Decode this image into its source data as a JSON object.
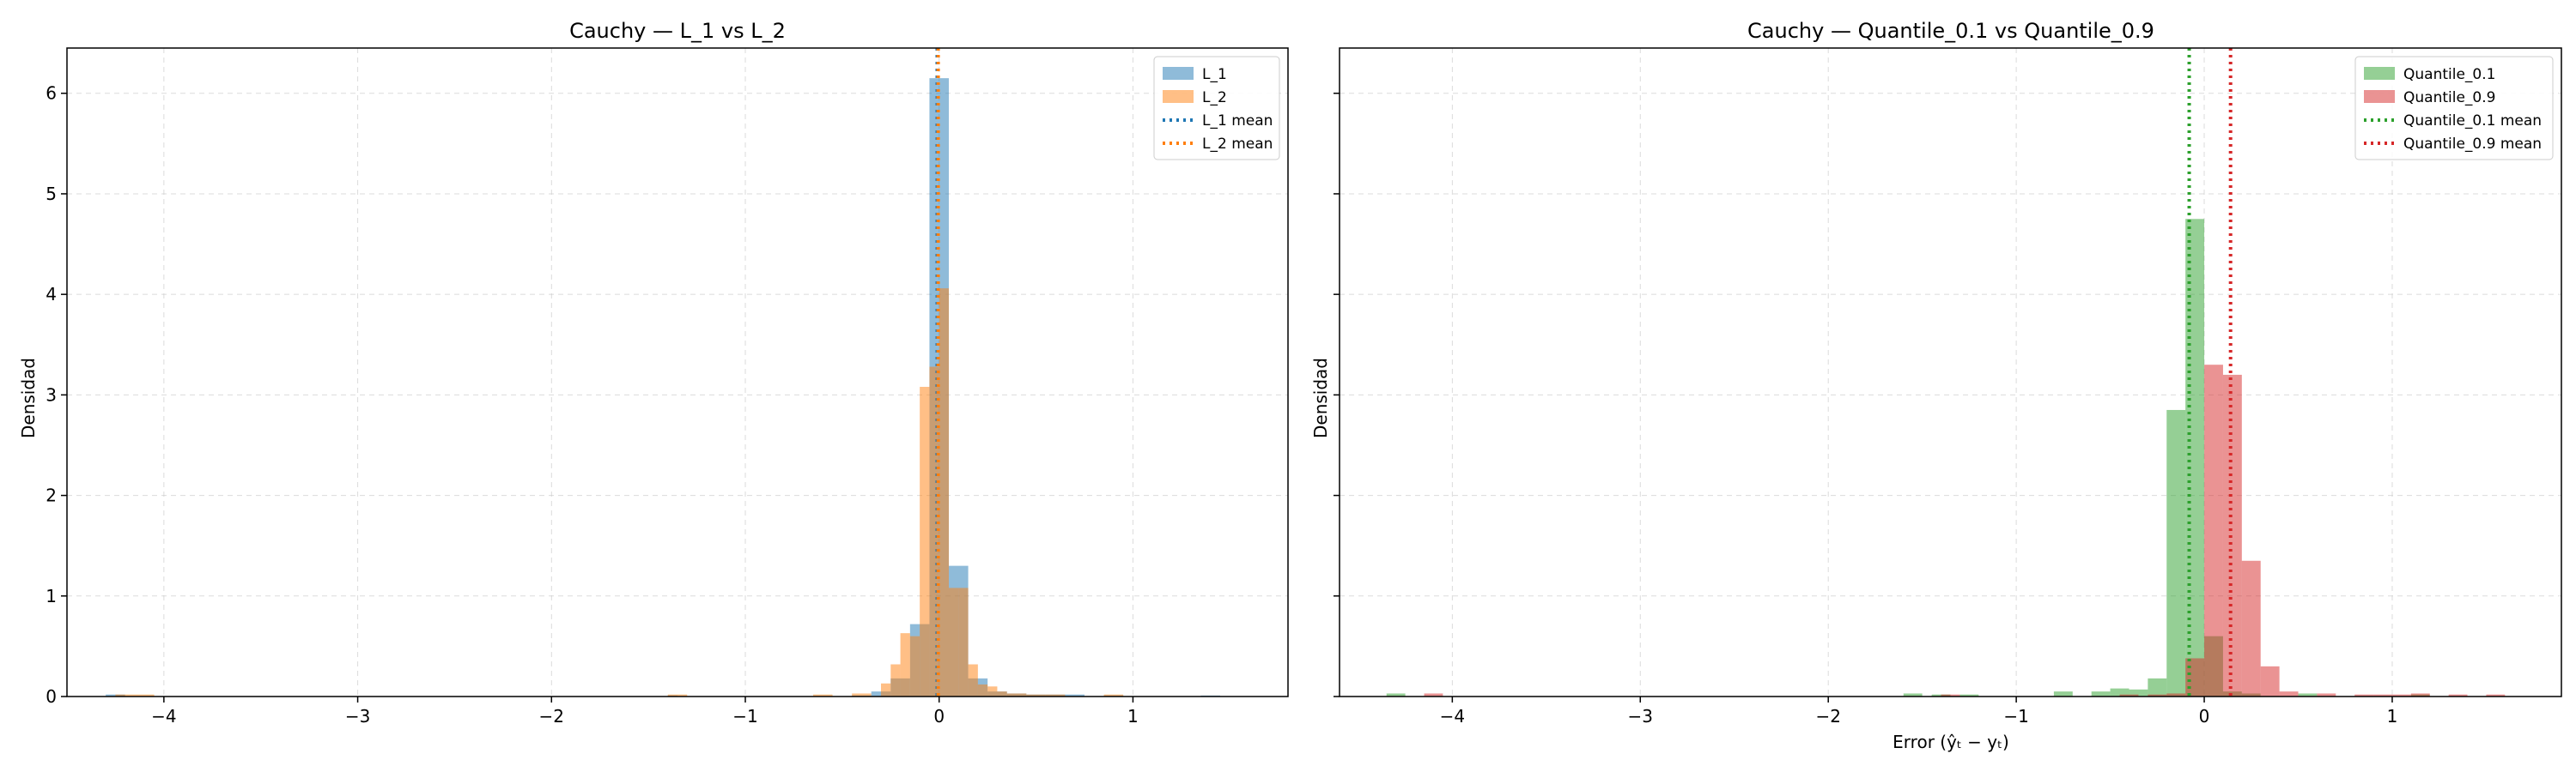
{
  "chart_data": [
    {
      "type": "histogram",
      "title": "Cauchy — L_1 vs L_2",
      "xlabel": "",
      "ylabel": "Densidad",
      "xlim": [
        -4.5,
        1.8
      ],
      "ylim": [
        0,
        6.45
      ],
      "xticks": [
        -4,
        -3,
        -2,
        -1,
        0,
        1
      ],
      "xtick_labels": [
        "−4",
        "−3",
        "−2",
        "−1",
        "0",
        "1"
      ],
      "yticks": [
        0,
        1,
        2,
        3,
        4,
        5,
        6
      ],
      "ytick_labels": [
        "0",
        "1",
        "2",
        "3",
        "4",
        "5",
        "6"
      ],
      "grid": true,
      "legend_position": "top-right",
      "series": [
        {
          "name": "L_1",
          "color": "#1f77b4",
          "opacity": 0.5,
          "bins": [
            {
              "x0": -4.3,
              "x1": -4.2,
              "y": 0.02
            },
            {
              "x0": -1.4,
              "x1": -1.35,
              "y": 0.01
            },
            {
              "x0": -0.45,
              "x1": -0.35,
              "y": 0.01
            },
            {
              "x0": -0.35,
              "x1": -0.25,
              "y": 0.05
            },
            {
              "x0": -0.25,
              "x1": -0.15,
              "y": 0.18
            },
            {
              "x0": -0.15,
              "x1": -0.05,
              "y": 0.72
            },
            {
              "x0": -0.05,
              "x1": 0.05,
              "y": 6.15
            },
            {
              "x0": 0.05,
              "x1": 0.15,
              "y": 1.3
            },
            {
              "x0": 0.15,
              "x1": 0.25,
              "y": 0.18
            },
            {
              "x0": 0.25,
              "x1": 0.35,
              "y": 0.05
            },
            {
              "x0": 0.35,
              "x1": 0.45,
              "y": 0.03
            },
            {
              "x0": 0.45,
              "x1": 0.55,
              "y": 0.02
            },
            {
              "x0": 0.55,
              "x1": 0.65,
              "y": 0.02
            },
            {
              "x0": 0.65,
              "x1": 0.75,
              "y": 0.02
            },
            {
              "x0": 0.85,
              "x1": 0.95,
              "y": 0.01
            },
            {
              "x0": 1.35,
              "x1": 1.45,
              "y": 0.01
            }
          ]
        },
        {
          "name": "L_2",
          "color": "#ff7f0e",
          "opacity": 0.5,
          "bins": [
            {
              "x0": -4.25,
              "x1": -4.05,
              "y": 0.02
            },
            {
              "x0": -1.4,
              "x1": -1.3,
              "y": 0.02
            },
            {
              "x0": -0.65,
              "x1": -0.55,
              "y": 0.02
            },
            {
              "x0": -0.45,
              "x1": -0.35,
              "y": 0.03
            },
            {
              "x0": -0.3,
              "x1": -0.25,
              "y": 0.13
            },
            {
              "x0": -0.25,
              "x1": -0.2,
              "y": 0.32
            },
            {
              "x0": -0.2,
              "x1": -0.15,
              "y": 0.63
            },
            {
              "x0": -0.15,
              "x1": -0.1,
              "y": 0.6
            },
            {
              "x0": -0.1,
              "x1": -0.05,
              "y": 3.08
            },
            {
              "x0": -0.05,
              "x1": 0.0,
              "y": 3.28
            },
            {
              "x0": 0.0,
              "x1": 0.05,
              "y": 4.06
            },
            {
              "x0": 0.05,
              "x1": 0.1,
              "y": 1.08
            },
            {
              "x0": 0.1,
              "x1": 0.15,
              "y": 1.08
            },
            {
              "x0": 0.15,
              "x1": 0.2,
              "y": 0.32
            },
            {
              "x0": 0.2,
              "x1": 0.25,
              "y": 0.12
            },
            {
              "x0": 0.25,
              "x1": 0.3,
              "y": 0.1
            },
            {
              "x0": 0.3,
              "x1": 0.35,
              "y": 0.05
            },
            {
              "x0": 0.35,
              "x1": 0.45,
              "y": 0.03
            },
            {
              "x0": 0.45,
              "x1": 0.55,
              "y": 0.02
            },
            {
              "x0": 0.55,
              "x1": 0.65,
              "y": 0.02
            },
            {
              "x0": 0.85,
              "x1": 0.95,
              "y": 0.02
            }
          ]
        }
      ],
      "mean_lines": [
        {
          "name": "L_1 mean",
          "x": -0.01,
          "color": "#1f77b4"
        },
        {
          "name": "L_2 mean",
          "x": -0.005,
          "color": "#ff7f0e"
        }
      ]
    },
    {
      "type": "histogram",
      "title": "Cauchy — Quantile_0.1 vs Quantile_0.9",
      "xlabel": "Error (ŷₜ − yₜ)",
      "ylabel": "Densidad",
      "xlim": [
        -4.6,
        1.9
      ],
      "ylim": [
        0,
        6.45
      ],
      "xticks": [
        -4,
        -3,
        -2,
        -1,
        0,
        1
      ],
      "xtick_labels": [
        "−4",
        "−3",
        "−2",
        "−1",
        "0",
        "1"
      ],
      "yticks": [
        0,
        1,
        2,
        3,
        4,
        5,
        6
      ],
      "ytick_labels": [
        "",
        "",
        "",
        "",
        "",
        "",
        ""
      ],
      "grid": true,
      "legend_position": "top-right",
      "series": [
        {
          "name": "Quantile_0.1",
          "color": "#2ca02c",
          "opacity": 0.5,
          "bins": [
            {
              "x0": -4.35,
              "x1": -4.25,
              "y": 0.03
            },
            {
              "x0": -1.6,
              "x1": -1.5,
              "y": 0.03
            },
            {
              "x0": -1.45,
              "x1": -1.35,
              "y": 0.02
            },
            {
              "x0": -1.3,
              "x1": -1.2,
              "y": 0.02
            },
            {
              "x0": -0.8,
              "x1": -0.7,
              "y": 0.05
            },
            {
              "x0": -0.6,
              "x1": -0.5,
              "y": 0.05
            },
            {
              "x0": -0.5,
              "x1": -0.4,
              "y": 0.08
            },
            {
              "x0": -0.4,
              "x1": -0.3,
              "y": 0.07
            },
            {
              "x0": -0.3,
              "x1": -0.2,
              "y": 0.18
            },
            {
              "x0": -0.2,
              "x1": -0.1,
              "y": 2.85
            },
            {
              "x0": -0.1,
              "x1": 0.0,
              "y": 4.75
            },
            {
              "x0": 0.0,
              "x1": 0.1,
              "y": 0.6
            },
            {
              "x0": 0.1,
              "x1": 0.2,
              "y": 0.05
            },
            {
              "x0": 0.2,
              "x1": 0.3,
              "y": 0.03
            },
            {
              "x0": 0.5,
              "x1": 0.6,
              "y": 0.03
            },
            {
              "x0": 1.1,
              "x1": 1.2,
              "y": 0.02
            }
          ]
        },
        {
          "name": "Quantile_0.9",
          "color": "#d62728",
          "opacity": 0.5,
          "bins": [
            {
              "x0": -4.15,
              "x1": -4.05,
              "y": 0.03
            },
            {
              "x0": -1.4,
              "x1": -1.3,
              "y": 0.02
            },
            {
              "x0": -0.45,
              "x1": -0.35,
              "y": 0.02
            },
            {
              "x0": -0.3,
              "x1": -0.2,
              "y": 0.02
            },
            {
              "x0": -0.2,
              "x1": -0.1,
              "y": 0.03
            },
            {
              "x0": -0.1,
              "x1": 0.0,
              "y": 0.38
            },
            {
              "x0": 0.0,
              "x1": 0.1,
              "y": 3.3
            },
            {
              "x0": 0.1,
              "x1": 0.2,
              "y": 3.2
            },
            {
              "x0": 0.2,
              "x1": 0.3,
              "y": 1.35
            },
            {
              "x0": 0.3,
              "x1": 0.4,
              "y": 0.3
            },
            {
              "x0": 0.4,
              "x1": 0.5,
              "y": 0.05
            },
            {
              "x0": 0.6,
              "x1": 0.7,
              "y": 0.03
            },
            {
              "x0": 0.8,
              "x1": 0.9,
              "y": 0.02
            },
            {
              "x0": 0.9,
              "x1": 1.0,
              "y": 0.02
            },
            {
              "x0": 1.0,
              "x1": 1.1,
              "y": 0.02
            },
            {
              "x0": 1.1,
              "x1": 1.2,
              "y": 0.03
            },
            {
              "x0": 1.3,
              "x1": 1.4,
              "y": 0.02
            },
            {
              "x0": 1.5,
              "x1": 1.6,
              "y": 0.02
            }
          ]
        }
      ],
      "mean_lines": [
        {
          "name": "Quantile_0.1 mean",
          "x": -0.08,
          "color": "#2ca02c"
        },
        {
          "name": "Quantile_0.9 mean",
          "x": 0.14,
          "color": "#d62728"
        }
      ]
    }
  ]
}
